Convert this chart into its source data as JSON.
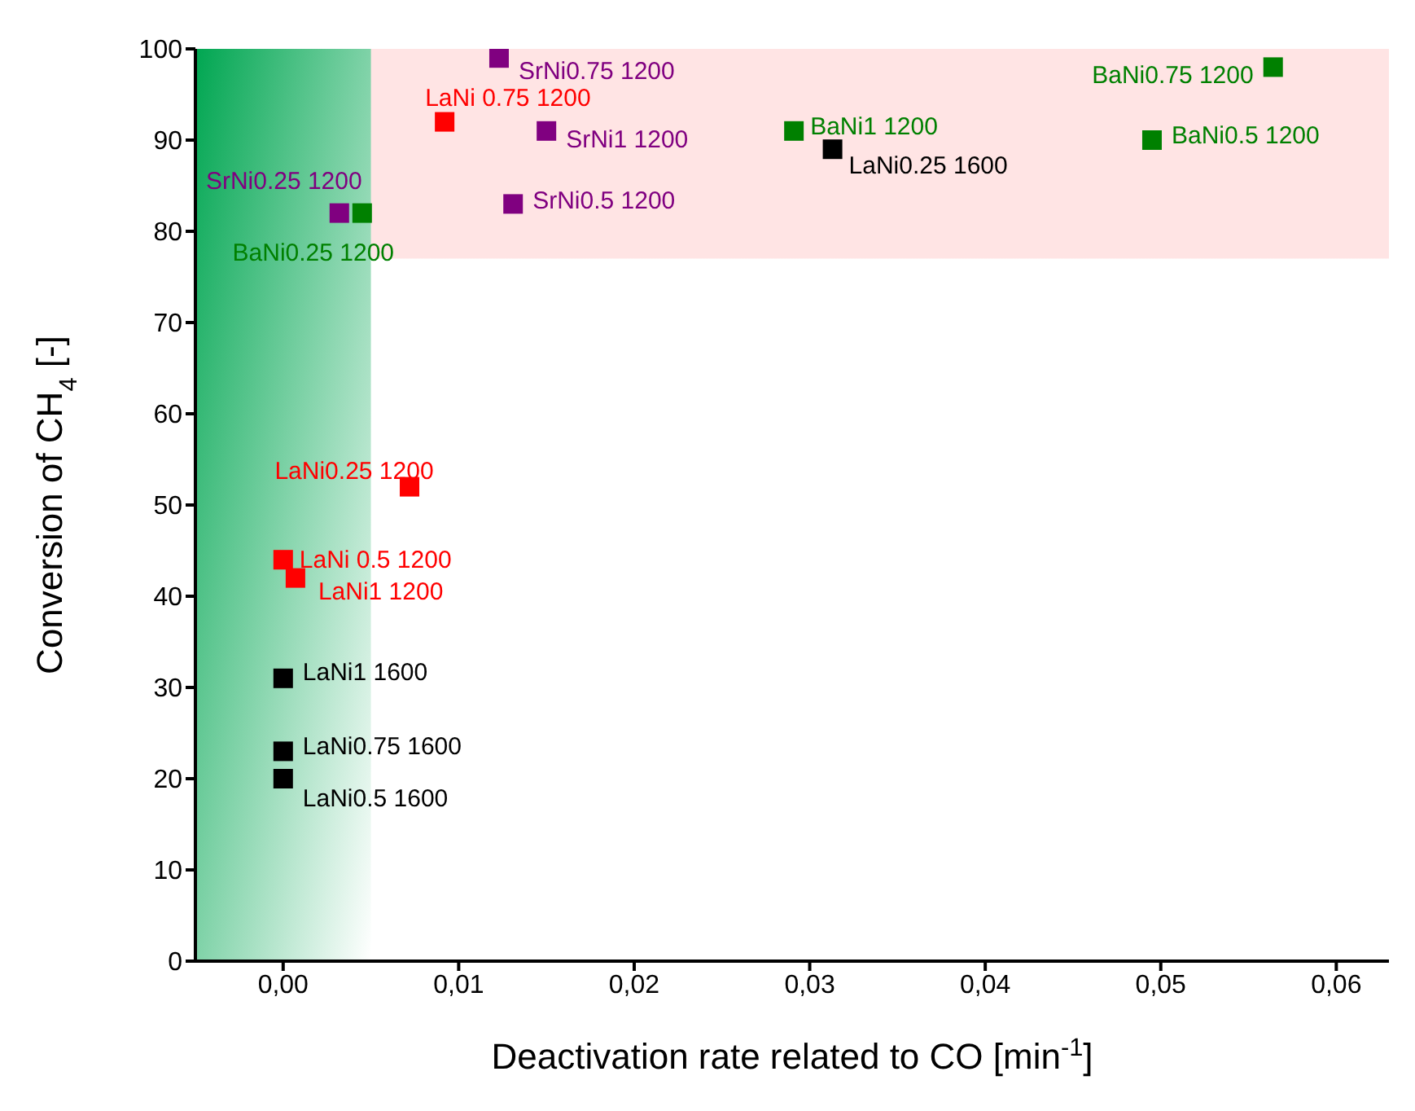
{
  "chart_data": {
    "type": "scatter",
    "xlabel": "Deactivation rate related to CO [min$^{-1}$]",
    "ylabel": "Conversion of CH$_{4}$ [-]",
    "xlim": [
      -0.005,
      0.063
    ],
    "ylim": [
      0,
      100
    ],
    "xticks": [
      {
        "value": 0,
        "label": "0,00"
      },
      {
        "value": 0.01,
        "label": "0,01"
      },
      {
        "value": 0.02,
        "label": "0,02"
      },
      {
        "value": 0.03,
        "label": "0,03"
      },
      {
        "value": 0.04,
        "label": "0,04"
      },
      {
        "value": 0.05,
        "label": "0,05"
      },
      {
        "value": 0.06,
        "label": "0,06"
      }
    ],
    "yticks": [
      0,
      10,
      20,
      30,
      40,
      50,
      60,
      70,
      80,
      90,
      100
    ],
    "legend": false,
    "marker": "square",
    "bands": [
      {
        "axis": "y",
        "from": 77,
        "to": 100,
        "color": "#ffe4e4"
      },
      {
        "axis": "x",
        "from": -0.005,
        "to": 0.005,
        "color": "#00a651"
      }
    ],
    "series": [
      {
        "name": "SrNi0.25 1200",
        "color": "#800080",
        "x": [
          0.0032
        ],
        "values": [
          82
        ]
      },
      {
        "name": "BaNi0.25 1200",
        "color": "#008000",
        "x": [
          0.0045
        ],
        "values": [
          82
        ]
      },
      {
        "name": "SrNi0.75 1200",
        "color": "#800080",
        "x": [
          0.0123
        ],
        "values": [
          99
        ]
      },
      {
        "name": "LaNi 0.75 1200",
        "color": "#ff0000",
        "x": [
          0.0092
        ],
        "values": [
          92
        ]
      },
      {
        "name": "SrNi1 1200",
        "color": "#800080",
        "x": [
          0.015
        ],
        "values": [
          91
        ]
      },
      {
        "name": "SrNi0.5 1200",
        "color": "#800080",
        "x": [
          0.0131
        ],
        "values": [
          83
        ]
      },
      {
        "name": "BaNi1 1200",
        "color": "#008000",
        "x": [
          0.0291
        ],
        "values": [
          91
        ]
      },
      {
        "name": "LaNi0.25 1600",
        "color": "#000000",
        "x": [
          0.0313
        ],
        "values": [
          89
        ]
      },
      {
        "name": "BaNi0.75 1200",
        "color": "#008000",
        "x": [
          0.0564
        ],
        "values": [
          98
        ]
      },
      {
        "name": "BaNi0.5 1200",
        "color": "#008000",
        "x": [
          0.0495
        ],
        "values": [
          90
        ]
      },
      {
        "name": "LaNi0.25 1200",
        "color": "#ff0000",
        "x": [
          0.0072
        ],
        "values": [
          52
        ]
      },
      {
        "name": "LaNi 0.5 1200",
        "color": "#ff0000",
        "x": [
          0
        ],
        "values": [
          44
        ]
      },
      {
        "name": "LaNi1 1200",
        "color": "#ff0000",
        "x": [
          0.0007
        ],
        "values": [
          42
        ]
      },
      {
        "name": "LaNi1 1600",
        "color": "#000000",
        "x": [
          0
        ],
        "values": [
          31
        ]
      },
      {
        "name": "LaNi0.75 1600",
        "color": "#000000",
        "x": [
          0
        ],
        "values": [
          23
        ]
      },
      {
        "name": "LaNi0.5 1600",
        "color": "#000000",
        "x": [
          0
        ],
        "values": [
          20
        ]
      }
    ]
  }
}
